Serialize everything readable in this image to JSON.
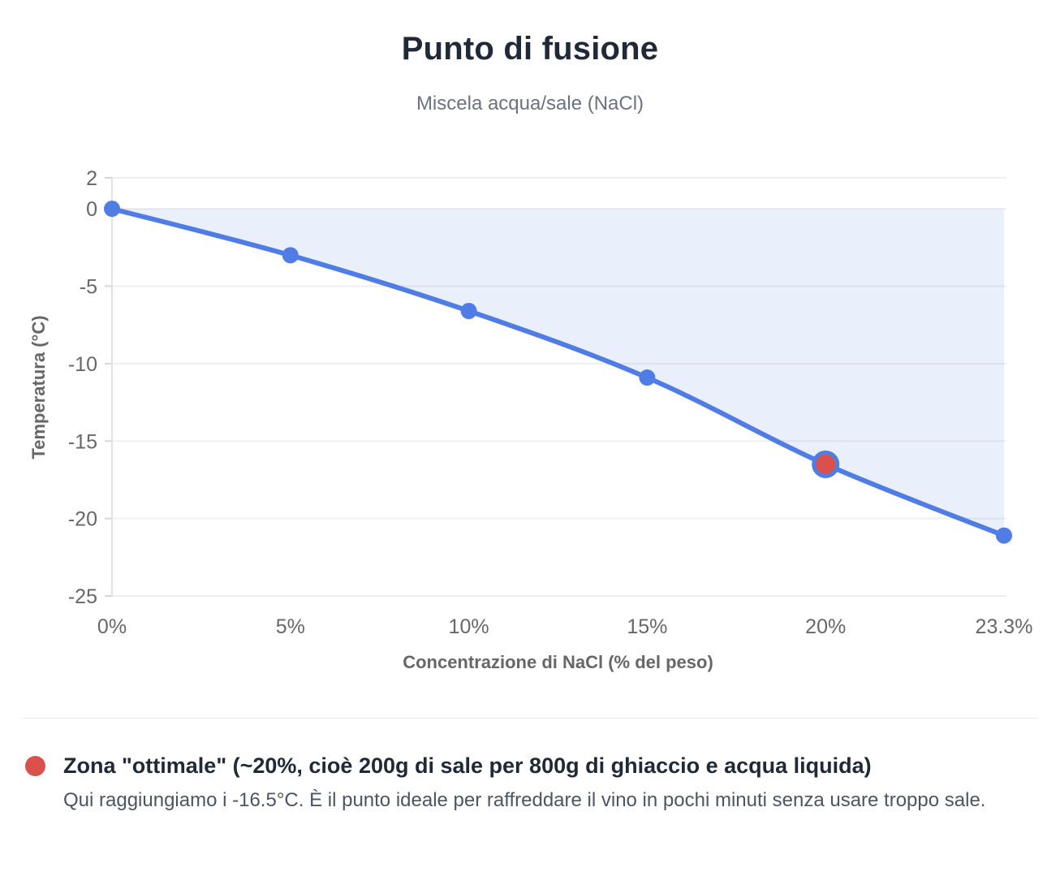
{
  "header": {
    "title": "Punto di fusione",
    "subtitle": "Miscela acqua/sale (NaCl)"
  },
  "chart_data": {
    "type": "line",
    "title": "Punto di fusione",
    "subtitle": "Miscela acqua/sale (NaCl)",
    "categories": [
      "0%",
      "5%",
      "10%",
      "15%",
      "20%",
      "23.3%"
    ],
    "series": [
      {
        "name": "Punto di fusione",
        "values": [
          0,
          -3,
          -6.6,
          -10.9,
          -16.5,
          -21.1
        ]
      }
    ],
    "xlabel": "Concentrazione di NaCl (% del peso)",
    "ylabel": "Temperatura (°C)",
    "ylim": [
      -25,
      2
    ],
    "yticks": [
      2,
      0,
      -5,
      -10,
      -15,
      -20,
      -25
    ],
    "grid": "horizontal-only",
    "fill": "origin",
    "legend_position": "none",
    "highlight_point": {
      "index": 4,
      "category": "20%",
      "value": -16.5
    },
    "colors": {
      "line": "#4f7de5",
      "point": "#4f7de5",
      "area_fill": "rgba(79,125,229,0.12)",
      "highlight": "#d9504c",
      "gridline": "#efefef",
      "axis_line": "#e3e3e3",
      "tick_mark": "#d6d6d6",
      "tick_label": "#676767",
      "axis_title": "#676767"
    }
  },
  "legend": {
    "marker_color": "#d9504c",
    "title": "Zona \"ottimale\" (~20%, cioè 200g di sale per 800g di ghiaccio e acqua liquida)",
    "description": "Qui raggiungiamo i -16.5°C. È il punto ideale per raffreddare il vino in pochi minuti senza usare troppo sale."
  }
}
